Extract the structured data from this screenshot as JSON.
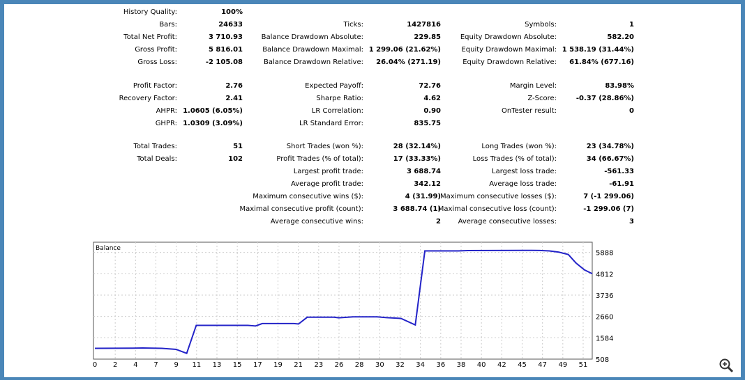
{
  "stats": {
    "groups": [
      [
        [
          [
            "History Quality:",
            "100%"
          ],
          null,
          null
        ],
        [
          [
            "Bars:",
            "24633"
          ],
          [
            "Ticks:",
            "1427816"
          ],
          [
            "Symbols:",
            "1"
          ]
        ],
        [
          [
            "Total Net Profit:",
            "3 710.93"
          ],
          [
            "Balance Drawdown Absolute:",
            "229.85"
          ],
          [
            "Equity Drawdown Absolute:",
            "582.20"
          ]
        ],
        [
          [
            "Gross Profit:",
            "5 816.01"
          ],
          [
            "Balance Drawdown Maximal:",
            "1 299.06 (21.62%)"
          ],
          [
            "Equity Drawdown Maximal:",
            "1 538.19 (31.44%)"
          ]
        ],
        [
          [
            "Gross Loss:",
            "-2 105.08"
          ],
          [
            "Balance Drawdown Relative:",
            "26.04% (271.19)"
          ],
          [
            "Equity Drawdown Relative:",
            "61.84% (677.16)"
          ]
        ]
      ],
      [
        [
          [
            "Profit Factor:",
            "2.76"
          ],
          [
            "Expected Payoff:",
            "72.76"
          ],
          [
            "Margin Level:",
            "83.98%"
          ]
        ],
        [
          [
            "Recovery Factor:",
            "2.41"
          ],
          [
            "Sharpe Ratio:",
            "4.62"
          ],
          [
            "Z-Score:",
            "-0.37 (28.86%)"
          ]
        ],
        [
          [
            "AHPR:",
            "1.0605 (6.05%)"
          ],
          [
            "LR Correlation:",
            "0.90"
          ],
          [
            "OnTester result:",
            "0"
          ]
        ],
        [
          [
            "GHPR:",
            "1.0309 (3.09%)"
          ],
          [
            "LR Standard Error:",
            "835.75"
          ],
          null
        ]
      ],
      [
        [
          [
            "Total Trades:",
            "51"
          ],
          [
            "Short Trades (won %):",
            "28 (32.14%)"
          ],
          [
            "Long Trades (won %):",
            "23 (34.78%)"
          ]
        ],
        [
          [
            "Total Deals:",
            "102"
          ],
          [
            "Profit Trades (% of total):",
            "17 (33.33%)"
          ],
          [
            "Loss Trades (% of total):",
            "34 (66.67%)"
          ]
        ],
        [
          null,
          [
            "Largest profit trade:",
            "3 688.74"
          ],
          [
            "Largest loss trade:",
            "-561.33"
          ]
        ],
        [
          null,
          [
            "Average profit trade:",
            "342.12"
          ],
          [
            "Average loss trade:",
            "-61.91"
          ]
        ],
        [
          null,
          [
            "Maximum consecutive wins ($):",
            "4 (31.99)"
          ],
          [
            "Maximum consecutive losses ($):",
            "7 (-1 299.06)"
          ]
        ],
        [
          null,
          [
            "Maximal consecutive profit (count):",
            "3 688.74 (1)"
          ],
          [
            "Maximal consecutive loss (count):",
            "-1 299.06 (7)"
          ]
        ],
        [
          null,
          [
            "Average consecutive wins:",
            "2"
          ],
          [
            "Average consecutive losses:",
            "3"
          ]
        ]
      ]
    ]
  },
  "chart_data": {
    "type": "line",
    "title": "Balance",
    "x_tick_labels": [
      "0",
      "2",
      "4",
      "7",
      "9",
      "11",
      "13",
      "15",
      "17",
      "19",
      "21",
      "23",
      "26",
      "28",
      "30",
      "32",
      "34",
      "36",
      "38",
      "40",
      "42",
      "45",
      "47",
      "49",
      "51"
    ],
    "y_ticks": [
      508,
      1584,
      2660,
      3736,
      4812,
      5888
    ],
    "xlim": [
      0,
      52
    ],
    "ylim": [
      508,
      6400
    ],
    "grid": true,
    "series": [
      {
        "name": "Balance",
        "color": "#2323c8",
        "x": [
          0,
          4,
          5,
          7,
          8.5,
          9.6,
          10.6,
          16,
          16.8,
          17.5,
          20.8,
          21.3,
          22.2,
          25,
          25.5,
          27,
          29.5,
          30.5,
          32,
          33.5,
          34.5,
          38,
          39,
          45,
          46.5,
          47.5,
          48.5,
          49.5,
          50.3,
          51.2,
          52
        ],
        "y": [
          1050,
          1060,
          1070,
          1050,
          1000,
          800,
          2210,
          2210,
          2180,
          2300,
          2300,
          2280,
          2620,
          2620,
          2590,
          2640,
          2640,
          2600,
          2560,
          2230,
          5960,
          5960,
          5980,
          5990,
          5985,
          5960,
          5900,
          5780,
          5350,
          5000,
          4812
        ]
      }
    ]
  },
  "icons": {
    "zoom": "magnifier-plus-icon"
  }
}
